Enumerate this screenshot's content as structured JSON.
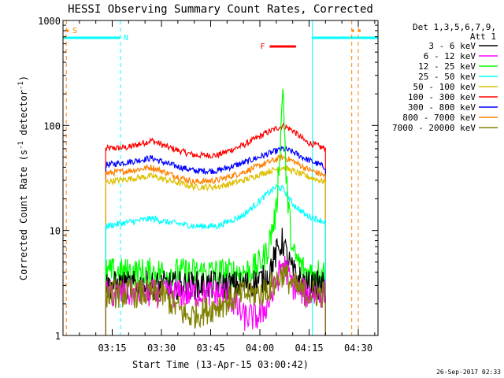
{
  "chart_data": {
    "type": "line",
    "title": "HESSI Observing Summary Count Rates, Corrected",
    "xlabel": "Start Time (13-Apr-15 03:00:42)",
    "ylabel": "Corrected Count Rate (s",
    "ylabel_sup1": "-1",
    "ylabel_mid": " detector",
    "ylabel_sup2": "-1",
    "ylabel_end": ")",
    "yscale": "log",
    "ylim": [
      1,
      1000
    ],
    "xlim_minutes": [
      0,
      96
    ],
    "x_ticks": [
      "03:15",
      "03:30",
      "03:45",
      "04:00",
      "04:15",
      "04:30"
    ],
    "x_tick_minutes": [
      15,
      30,
      45,
      60,
      75,
      90
    ],
    "y_ticks": [
      "1",
      "10",
      "100",
      "1000"
    ],
    "y_tick_values": [
      1,
      10,
      100,
      1000
    ],
    "legend": {
      "header1": "Det 1,3,5,6,7,9,",
      "header2": "Att 1",
      "entries": [
        {
          "label": "3 - 6 keV",
          "color": "#000000"
        },
        {
          "label": "6 - 12 keV",
          "color": "#ff00ff"
        },
        {
          "label": "12 - 25 keV",
          "color": "#00ff00"
        },
        {
          "label": "25 - 50 keV",
          "color": "#00ffff"
        },
        {
          "label": "50 - 100 keV",
          "color": "#ddc000"
        },
        {
          "label": "100 - 300 keV",
          "color": "#ff0000"
        },
        {
          "label": "300 - 800 keV",
          "color": "#0000ff"
        },
        {
          "label": "800 - 7000 keV",
          "color": "#ff8000"
        },
        {
          "label": "7000 - 20000 keV",
          "color": "#808000"
        }
      ]
    },
    "annotations": {
      "saa_label": "S",
      "night_label": "N",
      "flare_label": "F",
      "saa_color": "#ff8000",
      "night_color": "#00ffff",
      "flare_color": "#ff0000"
    },
    "data_start_minute": 13,
    "data_end_minute": 80,
    "night_intervals_minutes": [
      [
        0,
        17.5
      ],
      [
        76,
        96
      ]
    ],
    "saa_markers_minutes": [
      1,
      88,
      90
    ],
    "flare_interval_minutes": [
      63,
      71
    ],
    "series": [
      {
        "name": "100 - 300 keV",
        "color": "#ff0000",
        "x": [
          13,
          20,
          27,
          32,
          40,
          47,
          55,
          62,
          67,
          70,
          74,
          80
        ],
        "y": [
          60,
          62,
          72,
          62,
          52,
          52,
          65,
          85,
          100,
          90,
          70,
          60
        ]
      },
      {
        "name": "300 - 800 keV",
        "color": "#0000ff",
        "x": [
          13,
          20,
          27,
          32,
          40,
          47,
          55,
          62,
          67,
          70,
          74,
          80
        ],
        "y": [
          42,
          45,
          49,
          43,
          37,
          37,
          44,
          53,
          60,
          56,
          48,
          40
        ]
      },
      {
        "name": "800 - 7000 keV",
        "color": "#ff8000",
        "x": [
          13,
          20,
          27,
          32,
          40,
          47,
          55,
          62,
          67,
          70,
          74,
          80
        ],
        "y": [
          35,
          37,
          40,
          35,
          29,
          30,
          36,
          44,
          50,
          46,
          39,
          33
        ]
      },
      {
        "name": "50 - 100 keV",
        "color": "#ddc000",
        "x": [
          13,
          20,
          27,
          32,
          40,
          47,
          55,
          62,
          67,
          70,
          74,
          80
        ],
        "y": [
          29,
          31,
          33,
          30,
          26,
          26,
          30,
          36,
          40,
          37,
          33,
          29
        ]
      },
      {
        "name": "25 - 50 keV",
        "color": "#00ffff",
        "x": [
          13,
          20,
          27,
          32,
          40,
          47,
          55,
          59,
          62,
          65,
          67,
          70,
          74,
          80
        ],
        "y": [
          11,
          12,
          13,
          12,
          11,
          11,
          14,
          18,
          22,
          26,
          25,
          18,
          14,
          12
        ]
      },
      {
        "name": "12 - 25 keV",
        "color": "#00ff00",
        "x": [
          13,
          25,
          40,
          55,
          59,
          62,
          65,
          66.5,
          67,
          67.5,
          68,
          70,
          74,
          80
        ],
        "y": [
          4,
          4,
          4,
          4,
          4.5,
          6,
          15,
          100,
          250,
          100,
          30,
          6,
          4,
          4
        ]
      },
      {
        "name": "3 - 6 keV",
        "color": "#000000",
        "x": [
          13,
          25,
          40,
          55,
          62,
          65,
          67,
          68,
          70,
          74,
          80
        ],
        "y": [
          3,
          3,
          3,
          3,
          3.5,
          6,
          8,
          6,
          4,
          3,
          3
        ]
      },
      {
        "name": "6 - 12 keV",
        "color": "#ff00ff",
        "x": [
          13,
          25,
          40,
          50,
          55,
          60,
          64,
          67,
          70,
          74,
          80
        ],
        "y": [
          2.5,
          2.5,
          2.5,
          2.5,
          1.5,
          1.5,
          2.5,
          5,
          3,
          2.5,
          2.5
        ]
      },
      {
        "name": "7000 - 20000 keV",
        "color": "#808000",
        "x": [
          13,
          25,
          30,
          38,
          45,
          55,
          60,
          64,
          67,
          70,
          74,
          80
        ],
        "y": [
          2.5,
          2.5,
          2.5,
          1.5,
          1.8,
          2.5,
          2.5,
          3,
          4,
          3,
          2.5,
          2.5
        ]
      }
    ]
  },
  "footer": {
    "timestamp": "26-Sep-2017 02:33"
  }
}
